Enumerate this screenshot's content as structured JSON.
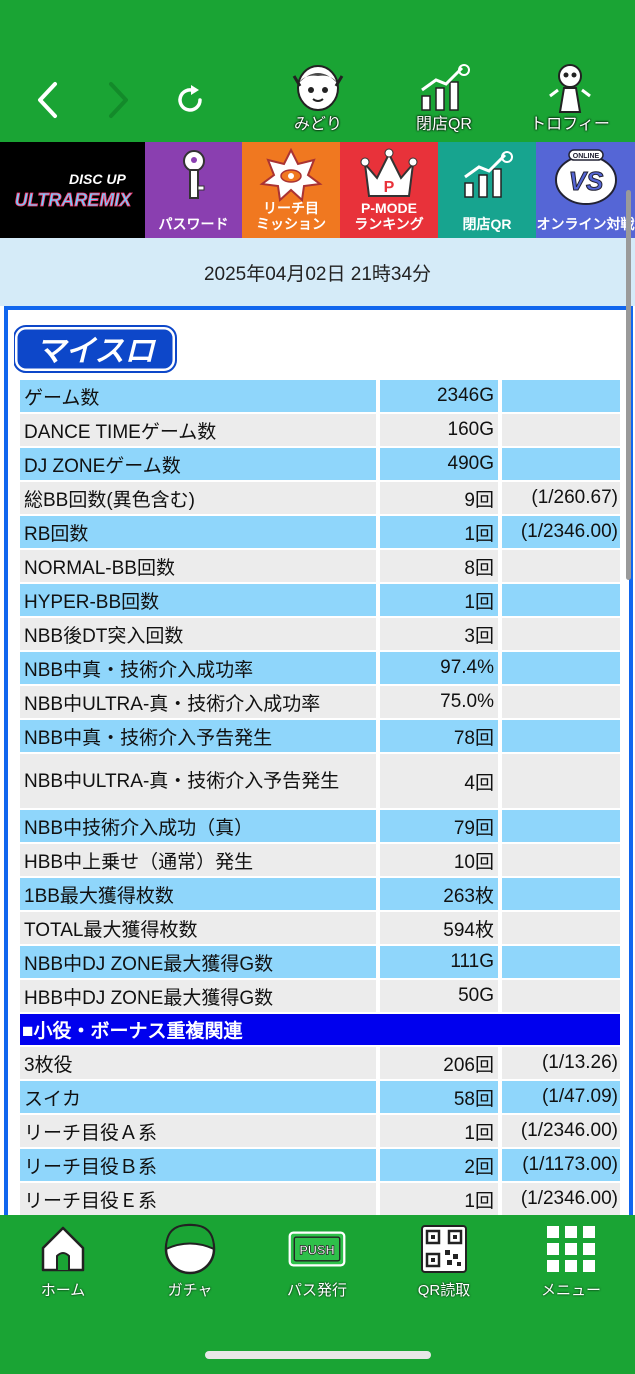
{
  "header": {
    "icons": [
      {
        "label": "みどり",
        "icon": "midori-character-icon"
      },
      {
        "label": "閉店QR",
        "icon": "closing-qr-chart-icon"
      },
      {
        "label": "トロフィー",
        "icon": "trophy-icon"
      }
    ]
  },
  "tiles": [
    {
      "label": "DISC UP\nULTRAREMIX",
      "icon": "disc-up-logo"
    },
    {
      "label": "パスワード",
      "icon": "key-icon"
    },
    {
      "label": "リーチ目\nミッション",
      "icon": "reach-eye-icon"
    },
    {
      "label": "P-MODE\nランキング",
      "icon": "crown-icon"
    },
    {
      "label": "閉店QR",
      "icon": "closing-qr-chart-icon"
    },
    {
      "label": "オンライン対戦",
      "icon": "versus-icon",
      "badge": "ONLINE"
    }
  ],
  "date": "2025年04月02日 21時34分",
  "panel": {
    "logo_text": "マイスロ",
    "rows": [
      {
        "name": "ゲーム数",
        "value": "2346G",
        "prob": ""
      },
      {
        "name": "DANCE TIMEゲーム数",
        "value": "160G",
        "prob": ""
      },
      {
        "name": "DJ ZONEゲーム数",
        "value": "490G",
        "prob": ""
      },
      {
        "name": "総BB回数(異色含む)",
        "value": "9回",
        "prob": "(1/260.67)"
      },
      {
        "name": "RB回数",
        "value": "1回",
        "prob": "(1/2346.00)"
      },
      {
        "name": "NORMAL-BB回数",
        "value": "8回",
        "prob": ""
      },
      {
        "name": "HYPER-BB回数",
        "value": "1回",
        "prob": ""
      },
      {
        "name": "NBB後DT突入回数",
        "value": "3回",
        "prob": ""
      },
      {
        "name": "NBB中真・技術介入成功率",
        "value": "97.4%",
        "prob": ""
      },
      {
        "name": "NBB中ULTRA-真・技術介入成功率",
        "value": "75.0%",
        "prob": ""
      },
      {
        "name": "NBB中真・技術介入予告発生",
        "value": "78回",
        "prob": ""
      },
      {
        "name": "NBB中ULTRA-真・技術介入予告発生",
        "value": "4回",
        "prob": ""
      },
      {
        "name": "NBB中技術介入成功（真）",
        "value": "79回",
        "prob": ""
      },
      {
        "name": "HBB中上乗せ（通常）発生",
        "value": "10回",
        "prob": ""
      },
      {
        "name": "1BB最大獲得枚数",
        "value": "263枚",
        "prob": ""
      },
      {
        "name": "TOTAL最大獲得枚数",
        "value": "594枚",
        "prob": ""
      },
      {
        "name": "NBB中DJ ZONE最大獲得G数",
        "value": "111G",
        "prob": ""
      },
      {
        "name": "HBB中DJ ZONE最大獲得G数",
        "value": "50G",
        "prob": ""
      }
    ],
    "section_title": "■小役・ボーナス重複関連",
    "section_rows": [
      {
        "name": "3枚役",
        "value": "206回",
        "prob": "(1/13.26)"
      },
      {
        "name": "スイカ",
        "value": "58回",
        "prob": "(1/47.09)"
      },
      {
        "name": "リーチ目役Ａ系",
        "value": "1回",
        "prob": "(1/2346.00)"
      },
      {
        "name": "リーチ目役Ｂ系",
        "value": "2回",
        "prob": "(1/1173.00)"
      },
      {
        "name": "リーチ目役Ｅ系",
        "value": "1回",
        "prob": "(1/2346.00)"
      }
    ]
  },
  "bottom_nav": [
    {
      "label": "ホーム",
      "icon": "home-icon"
    },
    {
      "label": "ガチャ",
      "icon": "gacha-icon"
    },
    {
      "label": "パス発行",
      "icon": "push-pass-icon",
      "badge": "PUSH"
    },
    {
      "label": "QR読取",
      "icon": "qr-code-icon"
    },
    {
      "label": "メニュー",
      "icon": "menu-grid-icon"
    }
  ],
  "colors": {
    "header_green": "#1aa434",
    "row_blue": "#8fd6fb",
    "row_gray": "#ececec",
    "section_blue": "#0000ee",
    "panel_border": "#1166ee"
  }
}
